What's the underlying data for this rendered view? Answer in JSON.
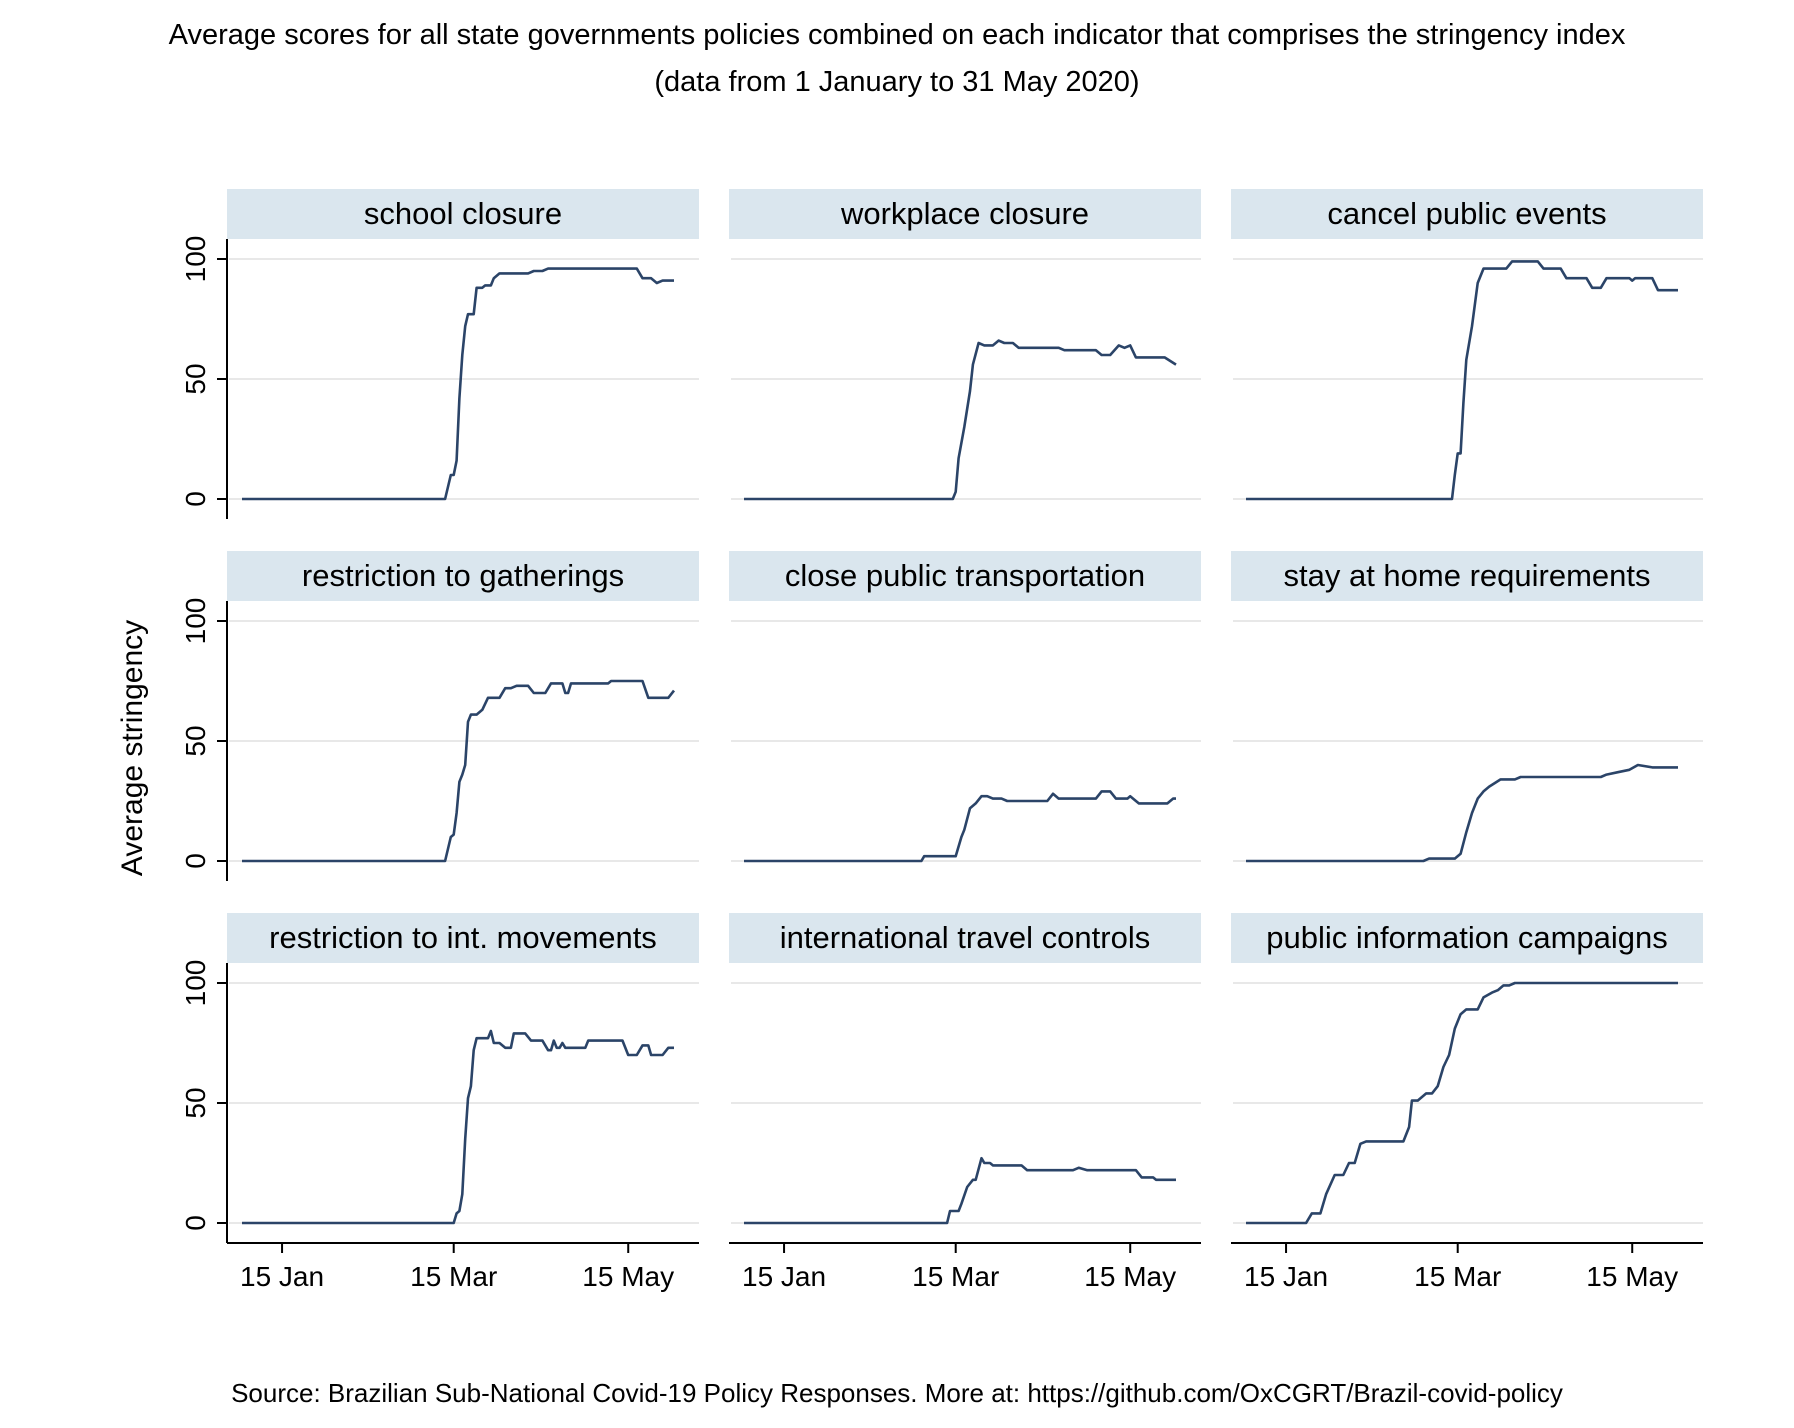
{
  "title_line1": "Average scores for all state governments policies combined on each indicator that comprises the stringency index",
  "title_line2": "(data from 1 January to 31 May 2020)",
  "source": "Source: Brazilian Sub-National Covid-19 Policy Responses. More at: https://github.com/OxCGRT/Brazil-covid-policy",
  "colors": {
    "line": "#2b4468",
    "strip": "#dae6ee",
    "grid": "#e8e8e8",
    "axis": "#000000"
  },
  "chart_data": {
    "type": "line",
    "layout": "3x3 facets",
    "ylabel": "Average stringency",
    "x_domain": [
      "2020-01-01",
      "2020-05-31"
    ],
    "x_ticks": [
      "2020-01-15",
      "2020-03-15",
      "2020-05-15"
    ],
    "x_tick_labels": [
      "15 Jan",
      "15 Mar",
      "15 May"
    ],
    "ylim": [
      0,
      105
    ],
    "y_ticks": [
      0,
      50,
      100
    ],
    "y_tick_labels": [
      "0",
      "50",
      "100"
    ],
    "grid": true,
    "legend": "none",
    "panels": [
      {
        "name": "school closure",
        "points": [
          [
            "2020-01-01",
            0
          ],
          [
            "2020-03-12",
            0
          ],
          [
            "2020-03-14",
            10
          ],
          [
            "2020-03-15",
            10
          ],
          [
            "2020-03-16",
            16
          ],
          [
            "2020-03-17",
            42
          ],
          [
            "2020-03-18",
            60
          ],
          [
            "2020-03-19",
            72
          ],
          [
            "2020-03-20",
            77
          ],
          [
            "2020-03-22",
            77
          ],
          [
            "2020-03-23",
            88
          ],
          [
            "2020-03-25",
            88
          ],
          [
            "2020-03-26",
            89
          ],
          [
            "2020-03-28",
            89
          ],
          [
            "2020-03-29",
            92
          ],
          [
            "2020-03-31",
            94
          ],
          [
            "2020-04-10",
            94
          ],
          [
            "2020-04-12",
            95
          ],
          [
            "2020-04-15",
            95
          ],
          [
            "2020-04-17",
            96
          ],
          [
            "2020-05-18",
            96
          ],
          [
            "2020-05-20",
            92
          ],
          [
            "2020-05-23",
            92
          ],
          [
            "2020-05-25",
            90
          ],
          [
            "2020-05-27",
            91
          ],
          [
            "2020-05-31",
            91
          ]
        ]
      },
      {
        "name": "workplace closure",
        "points": [
          [
            "2020-01-01",
            0
          ],
          [
            "2020-03-14",
            0
          ],
          [
            "2020-03-15",
            3
          ],
          [
            "2020-03-16",
            17
          ],
          [
            "2020-03-18",
            30
          ],
          [
            "2020-03-20",
            45
          ],
          [
            "2020-03-21",
            56
          ],
          [
            "2020-03-23",
            65
          ],
          [
            "2020-03-25",
            64
          ],
          [
            "2020-03-28",
            64
          ],
          [
            "2020-03-30",
            66
          ],
          [
            "2020-04-01",
            65
          ],
          [
            "2020-04-04",
            65
          ],
          [
            "2020-04-06",
            63
          ],
          [
            "2020-04-20",
            63
          ],
          [
            "2020-04-22",
            62
          ],
          [
            "2020-05-03",
            62
          ],
          [
            "2020-05-05",
            60
          ],
          [
            "2020-05-08",
            60
          ],
          [
            "2020-05-11",
            64
          ],
          [
            "2020-05-13",
            63
          ],
          [
            "2020-05-15",
            64
          ],
          [
            "2020-05-17",
            59
          ],
          [
            "2020-05-27",
            59
          ],
          [
            "2020-05-31",
            56
          ]
        ]
      },
      {
        "name": "cancel public events",
        "points": [
          [
            "2020-01-01",
            0
          ],
          [
            "2020-03-13",
            0
          ],
          [
            "2020-03-14",
            10
          ],
          [
            "2020-03-15",
            19
          ],
          [
            "2020-03-16",
            19
          ],
          [
            "2020-03-17",
            40
          ],
          [
            "2020-03-18",
            58
          ],
          [
            "2020-03-20",
            72
          ],
          [
            "2020-03-22",
            90
          ],
          [
            "2020-03-24",
            96
          ],
          [
            "2020-04-01",
            96
          ],
          [
            "2020-04-03",
            99
          ],
          [
            "2020-04-12",
            99
          ],
          [
            "2020-04-14",
            96
          ],
          [
            "2020-04-20",
            96
          ],
          [
            "2020-04-22",
            92
          ],
          [
            "2020-04-29",
            92
          ],
          [
            "2020-05-01",
            88
          ],
          [
            "2020-05-04",
            88
          ],
          [
            "2020-05-06",
            92
          ],
          [
            "2020-05-14",
            92
          ],
          [
            "2020-05-15",
            91
          ],
          [
            "2020-05-16",
            92
          ],
          [
            "2020-05-22",
            92
          ],
          [
            "2020-05-24",
            87
          ],
          [
            "2020-05-31",
            87
          ]
        ]
      },
      {
        "name": "restriction to gatherings",
        "points": [
          [
            "2020-01-01",
            0
          ],
          [
            "2020-03-12",
            0
          ],
          [
            "2020-03-14",
            10
          ],
          [
            "2020-03-15",
            11
          ],
          [
            "2020-03-16",
            20
          ],
          [
            "2020-03-17",
            33
          ],
          [
            "2020-03-18",
            36
          ],
          [
            "2020-03-19",
            40
          ],
          [
            "2020-03-20",
            58
          ],
          [
            "2020-03-21",
            61
          ],
          [
            "2020-03-23",
            61
          ],
          [
            "2020-03-25",
            63
          ],
          [
            "2020-03-27",
            68
          ],
          [
            "2020-03-31",
            68
          ],
          [
            "2020-04-02",
            72
          ],
          [
            "2020-04-04",
            72
          ],
          [
            "2020-04-06",
            73
          ],
          [
            "2020-04-10",
            73
          ],
          [
            "2020-04-12",
            70
          ],
          [
            "2020-04-16",
            70
          ],
          [
            "2020-04-18",
            74
          ],
          [
            "2020-04-22",
            74
          ],
          [
            "2020-04-23",
            70
          ],
          [
            "2020-04-24",
            70
          ],
          [
            "2020-04-25",
            74
          ],
          [
            "2020-05-08",
            74
          ],
          [
            "2020-05-09",
            75
          ],
          [
            "2020-05-20",
            75
          ],
          [
            "2020-05-22",
            68
          ],
          [
            "2020-05-29",
            68
          ],
          [
            "2020-05-31",
            71
          ]
        ]
      },
      {
        "name": "close public transportation",
        "points": [
          [
            "2020-01-01",
            0
          ],
          [
            "2020-03-03",
            0
          ],
          [
            "2020-03-04",
            2
          ],
          [
            "2020-03-15",
            2
          ],
          [
            "2020-03-17",
            10
          ],
          [
            "2020-03-18",
            13
          ],
          [
            "2020-03-20",
            22
          ],
          [
            "2020-03-22",
            24
          ],
          [
            "2020-03-24",
            27
          ],
          [
            "2020-03-26",
            27
          ],
          [
            "2020-03-28",
            26
          ],
          [
            "2020-03-31",
            26
          ],
          [
            "2020-04-02",
            25
          ],
          [
            "2020-04-16",
            25
          ],
          [
            "2020-04-18",
            28
          ],
          [
            "2020-04-20",
            26
          ],
          [
            "2020-05-03",
            26
          ],
          [
            "2020-05-05",
            29
          ],
          [
            "2020-05-08",
            29
          ],
          [
            "2020-05-10",
            26
          ],
          [
            "2020-05-14",
            26
          ],
          [
            "2020-05-15",
            27
          ],
          [
            "2020-05-18",
            24
          ],
          [
            "2020-05-28",
            24
          ],
          [
            "2020-05-30",
            26
          ],
          [
            "2020-05-31",
            26
          ]
        ]
      },
      {
        "name": "stay at home requirements",
        "points": [
          [
            "2020-01-01",
            0
          ],
          [
            "2020-03-03",
            0
          ],
          [
            "2020-03-05",
            1
          ],
          [
            "2020-03-14",
            1
          ],
          [
            "2020-03-16",
            3
          ],
          [
            "2020-03-18",
            12
          ],
          [
            "2020-03-20",
            20
          ],
          [
            "2020-03-22",
            26
          ],
          [
            "2020-03-24",
            29
          ],
          [
            "2020-03-26",
            31
          ],
          [
            "2020-03-30",
            34
          ],
          [
            "2020-04-04",
            34
          ],
          [
            "2020-04-06",
            35
          ],
          [
            "2020-04-24",
            35
          ],
          [
            "2020-04-26",
            35
          ],
          [
            "2020-05-04",
            35
          ],
          [
            "2020-05-06",
            36
          ],
          [
            "2020-05-10",
            37
          ],
          [
            "2020-05-14",
            38
          ],
          [
            "2020-05-17",
            40
          ],
          [
            "2020-05-22",
            39
          ],
          [
            "2020-05-31",
            39
          ]
        ]
      },
      {
        "name": "restriction to int. movements",
        "points": [
          [
            "2020-01-01",
            0
          ],
          [
            "2020-03-15",
            0
          ],
          [
            "2020-03-16",
            4
          ],
          [
            "2020-03-17",
            5
          ],
          [
            "2020-03-18",
            12
          ],
          [
            "2020-03-19",
            35
          ],
          [
            "2020-03-20",
            52
          ],
          [
            "2020-03-21",
            57
          ],
          [
            "2020-03-22",
            72
          ],
          [
            "2020-03-23",
            77
          ],
          [
            "2020-03-27",
            77
          ],
          [
            "2020-03-28",
            80
          ],
          [
            "2020-03-29",
            75
          ],
          [
            "2020-03-31",
            75
          ],
          [
            "2020-04-02",
            73
          ],
          [
            "2020-04-04",
            73
          ],
          [
            "2020-04-05",
            79
          ],
          [
            "2020-04-09",
            79
          ],
          [
            "2020-04-11",
            76
          ],
          [
            "2020-04-15",
            76
          ],
          [
            "2020-04-17",
            72
          ],
          [
            "2020-04-18",
            72
          ],
          [
            "2020-04-19",
            76
          ],
          [
            "2020-04-20",
            73
          ],
          [
            "2020-04-21",
            73
          ],
          [
            "2020-04-22",
            75
          ],
          [
            "2020-04-23",
            73
          ],
          [
            "2020-04-30",
            73
          ],
          [
            "2020-05-01",
            76
          ],
          [
            "2020-05-13",
            76
          ],
          [
            "2020-05-15",
            70
          ],
          [
            "2020-05-18",
            70
          ],
          [
            "2020-05-20",
            74
          ],
          [
            "2020-05-22",
            74
          ],
          [
            "2020-05-23",
            70
          ],
          [
            "2020-05-27",
            70
          ],
          [
            "2020-05-29",
            73
          ],
          [
            "2020-05-31",
            73
          ]
        ]
      },
      {
        "name": "international travel controls",
        "points": [
          [
            "2020-01-01",
            0
          ],
          [
            "2020-03-12",
            0
          ],
          [
            "2020-03-13",
            5
          ],
          [
            "2020-03-16",
            5
          ],
          [
            "2020-03-17",
            8
          ],
          [
            "2020-03-19",
            15
          ],
          [
            "2020-03-21",
            18
          ],
          [
            "2020-03-22",
            18
          ],
          [
            "2020-03-24",
            27
          ],
          [
            "2020-03-25",
            25
          ],
          [
            "2020-03-27",
            25
          ],
          [
            "2020-03-28",
            24
          ],
          [
            "2020-04-07",
            24
          ],
          [
            "2020-04-09",
            22
          ],
          [
            "2020-04-25",
            22
          ],
          [
            "2020-04-27",
            23
          ],
          [
            "2020-04-30",
            22
          ],
          [
            "2020-05-17",
            22
          ],
          [
            "2020-05-19",
            19
          ],
          [
            "2020-05-23",
            19
          ],
          [
            "2020-05-24",
            18
          ],
          [
            "2020-05-31",
            18
          ]
        ]
      },
      {
        "name": "public information campaigns",
        "points": [
          [
            "2020-01-01",
            0
          ],
          [
            "2020-01-22",
            0
          ],
          [
            "2020-01-24",
            4
          ],
          [
            "2020-01-27",
            4
          ],
          [
            "2020-01-29",
            12
          ],
          [
            "2020-02-01",
            20
          ],
          [
            "2020-02-04",
            20
          ],
          [
            "2020-02-06",
            25
          ],
          [
            "2020-02-08",
            25
          ],
          [
            "2020-02-10",
            33
          ],
          [
            "2020-02-12",
            34
          ],
          [
            "2020-02-25",
            34
          ],
          [
            "2020-02-27",
            40
          ],
          [
            "2020-02-28",
            51
          ],
          [
            "2020-03-01",
            51
          ],
          [
            "2020-03-04",
            54
          ],
          [
            "2020-03-06",
            54
          ],
          [
            "2020-03-08",
            57
          ],
          [
            "2020-03-10",
            65
          ],
          [
            "2020-03-12",
            70
          ],
          [
            "2020-03-14",
            81
          ],
          [
            "2020-03-16",
            87
          ],
          [
            "2020-03-18",
            89
          ],
          [
            "2020-03-22",
            89
          ],
          [
            "2020-03-24",
            94
          ],
          [
            "2020-03-27",
            96
          ],
          [
            "2020-03-29",
            97
          ],
          [
            "2020-03-31",
            99
          ],
          [
            "2020-04-02",
            99
          ],
          [
            "2020-04-04",
            100
          ],
          [
            "2020-05-31",
            100
          ]
        ]
      }
    ]
  }
}
